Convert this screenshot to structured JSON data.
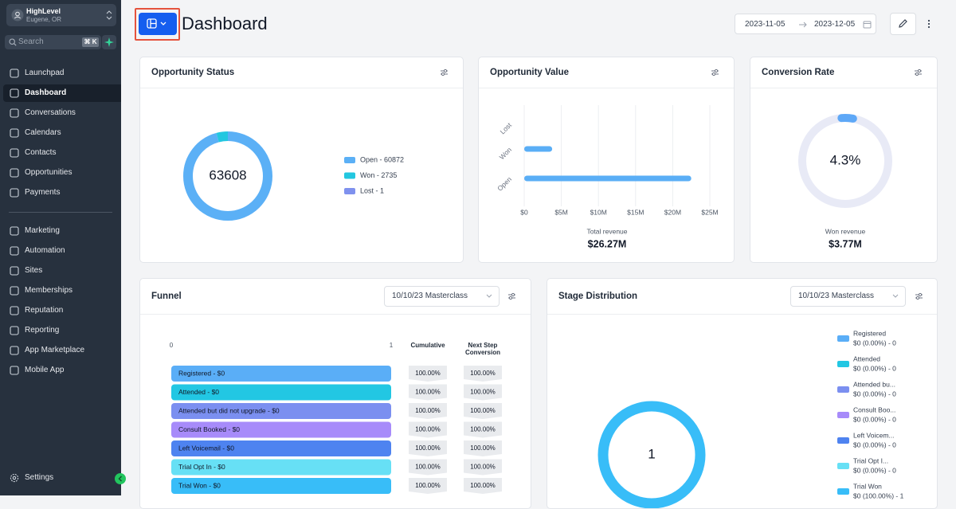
{
  "sidebar": {
    "account_name": "HighLevel",
    "account_location": "Eugene, OR",
    "search_placeholder": "Search",
    "search_shortcut": "⌘ K",
    "nav_main": [
      "Launchpad",
      "Dashboard",
      "Conversations",
      "Calendars",
      "Contacts",
      "Opportunities",
      "Payments"
    ],
    "active_index": 1,
    "nav_secondary": [
      "Marketing",
      "Automation",
      "Sites",
      "Memberships",
      "Reputation",
      "Reporting",
      "App Marketplace",
      "Mobile App"
    ],
    "settings": "Settings"
  },
  "header": {
    "title": "Dashboard",
    "date_start": "2023-11-05",
    "date_end": "2023-12-05"
  },
  "opportunity_status": {
    "title": "Opportunity Status",
    "chart": {
      "type": "pie",
      "donut": true,
      "total": 63608,
      "values": [
        60872,
        2735,
        1
      ],
      "value_labels": [
        "Open - 60872",
        "Won - 2735",
        "Lost - 1"
      ],
      "colors": [
        "#5bb0f6",
        "#22c7e0",
        "#7f91ee"
      ]
    }
  },
  "opportunity_value": {
    "title": "Opportunity Value",
    "chart": {
      "type": "bar",
      "orientation": "horizontal",
      "categories": [
        "Lost",
        "Won",
        "Open"
      ],
      "values": [
        0,
        3770000,
        22500000
      ],
      "color": "#5aaef6",
      "xlim": [
        0,
        25000000
      ],
      "xticks": [
        {
          "value": 0,
          "label": "$0"
        },
        {
          "value": 5000000,
          "label": "$5M"
        },
        {
          "value": 10000000,
          "label": "$10M"
        },
        {
          "value": 15000000,
          "label": "$15M"
        },
        {
          "value": 20000000,
          "label": "$20M"
        },
        {
          "value": 25000000,
          "label": "$25M"
        }
      ],
      "grid": true
    },
    "summary_label": "Total revenue",
    "summary_value": "$26.27M"
  },
  "conversion_rate": {
    "title": "Conversion Rate",
    "chart": {
      "type": "gauge",
      "value": 4.3,
      "value_label": "4.3%",
      "range": [
        0,
        100
      ],
      "color": "#5ea8f7",
      "track_color": "#e8eaf6"
    },
    "summary_label": "Won revenue",
    "summary_value": "$3.77M"
  },
  "funnel": {
    "title": "Funnel",
    "filter": "10/10/23 Masterclass",
    "chart": {
      "type": "funnel",
      "xlim": [
        0,
        1
      ],
      "xticks": [
        0,
        1
      ],
      "categories": [
        "Registered - $0",
        "Attended - $0",
        "Attended but did not upgrade - $0",
        "Consult Booked - $0",
        "Left Voicemail - $0",
        "Trial Opt In - $0",
        "Trial Won - $0"
      ],
      "values": [
        1,
        1,
        1,
        1,
        1,
        1,
        1
      ],
      "colors": [
        "#5aaef7",
        "#22c7e3",
        "#7b8ff0",
        "#a78bfa",
        "#4e83f0",
        "#67e0f5",
        "#38bdf8"
      ]
    },
    "columns": {
      "headers": [
        "Cumulative",
        "Next Step Conversion"
      ],
      "cumulative": [
        "100.00%",
        "100.00%",
        "100.00%",
        "100.00%",
        "100.00%",
        "100.00%",
        "100.00%"
      ],
      "next_step": [
        "100.00%",
        "100.00%",
        "100.00%",
        "100.00%",
        "100.00%",
        "100.00%",
        "100.00%"
      ]
    }
  },
  "stage_distribution": {
    "title": "Stage Distribution",
    "filter": "10/10/23 Masterclass",
    "chart": {
      "type": "pie",
      "donut": true,
      "total": 1,
      "categories": [
        "Registered",
        "Attended",
        "Attended bu...",
        "Consult Boo...",
        "Left Voicem...",
        "Trial Opt I...",
        "Trial Won"
      ],
      "values": [
        0,
        0,
        0,
        0,
        0,
        0,
        1
      ],
      "value_labels": [
        "$0 (0.00%) - 0",
        "$0 (0.00%) - 0",
        "$0 (0.00%) - 0",
        "$0 (0.00%) - 0",
        "$0 (0.00%) - 0",
        "$0 (0.00%) - 0",
        "$0 (100.00%) - 1"
      ],
      "colors": [
        "#5aaef7",
        "#22c7e3",
        "#7b8ff0",
        "#a78bfa",
        "#4e83f0",
        "#67e0f5",
        "#38bdf8"
      ]
    }
  }
}
